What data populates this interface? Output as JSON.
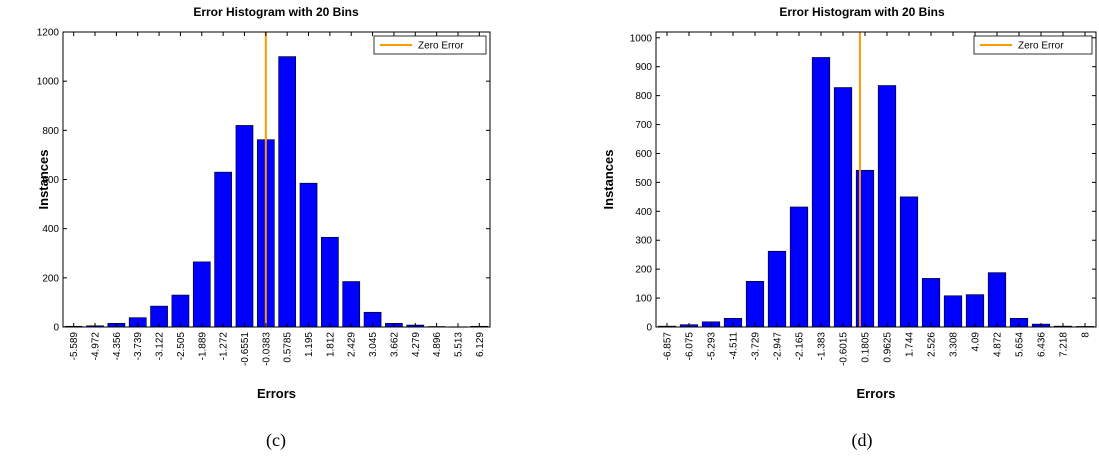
{
  "chart_data": [
    {
      "type": "bar",
      "title": "Error Histogram with 20 Bins",
      "xlabel": "Errors",
      "ylabel": "Instances",
      "caption": "(c)",
      "ylim": [
        0,
        1200
      ],
      "yticks": [
        0,
        200,
        400,
        600,
        800,
        1000,
        1200
      ],
      "categories": [
        "-5.589",
        "-4.972",
        "-4.356",
        "-3.739",
        "-3.122",
        "-2.505",
        "-1.889",
        "-1.272",
        "-0.6551",
        "-0.0383",
        "0.5785",
        "1.195",
        "1.812",
        "2.429",
        "3.045",
        "3.662",
        "4.279",
        "4.896",
        "5.513",
        "6.129"
      ],
      "values": [
        3,
        5,
        15,
        38,
        85,
        130,
        265,
        630,
        820,
        762,
        1100,
        585,
        365,
        185,
        60,
        15,
        8,
        2,
        1,
        3
      ],
      "bar_color": "#0000ff",
      "zero_error_x": -0.0383,
      "zero_error_color": "#ff9900",
      "legend": {
        "label": "Zero Error",
        "position": "top-right"
      }
    },
    {
      "type": "bar",
      "title": "Error Histogram with 20 Bins",
      "xlabel": "Errors",
      "ylabel": "Instances",
      "caption": "(d)",
      "ylim": [
        0,
        1020
      ],
      "yticks": [
        0,
        100,
        200,
        300,
        400,
        500,
        600,
        700,
        800,
        900,
        1000
      ],
      "categories": [
        "-6.857",
        "-6.075",
        "-5.293",
        "-4.511",
        "-3.729",
        "-2.947",
        "-2.165",
        "-1.383",
        "-0.6015",
        "0.1805",
        "0.9625",
        "1.744",
        "2.526",
        "3.308",
        "4.09",
        "4.872",
        "5.654",
        "6.436",
        "7.218",
        "8"
      ],
      "values": [
        3,
        8,
        18,
        30,
        158,
        262,
        415,
        932,
        828,
        542,
        835,
        450,
        168,
        108,
        112,
        188,
        30,
        10,
        3,
        2
      ],
      "bar_color": "#0000ff",
      "zero_error_x": 0,
      "zero_error_color": "#ff9900",
      "legend": {
        "label": "Zero Error",
        "position": "top-right"
      }
    }
  ]
}
